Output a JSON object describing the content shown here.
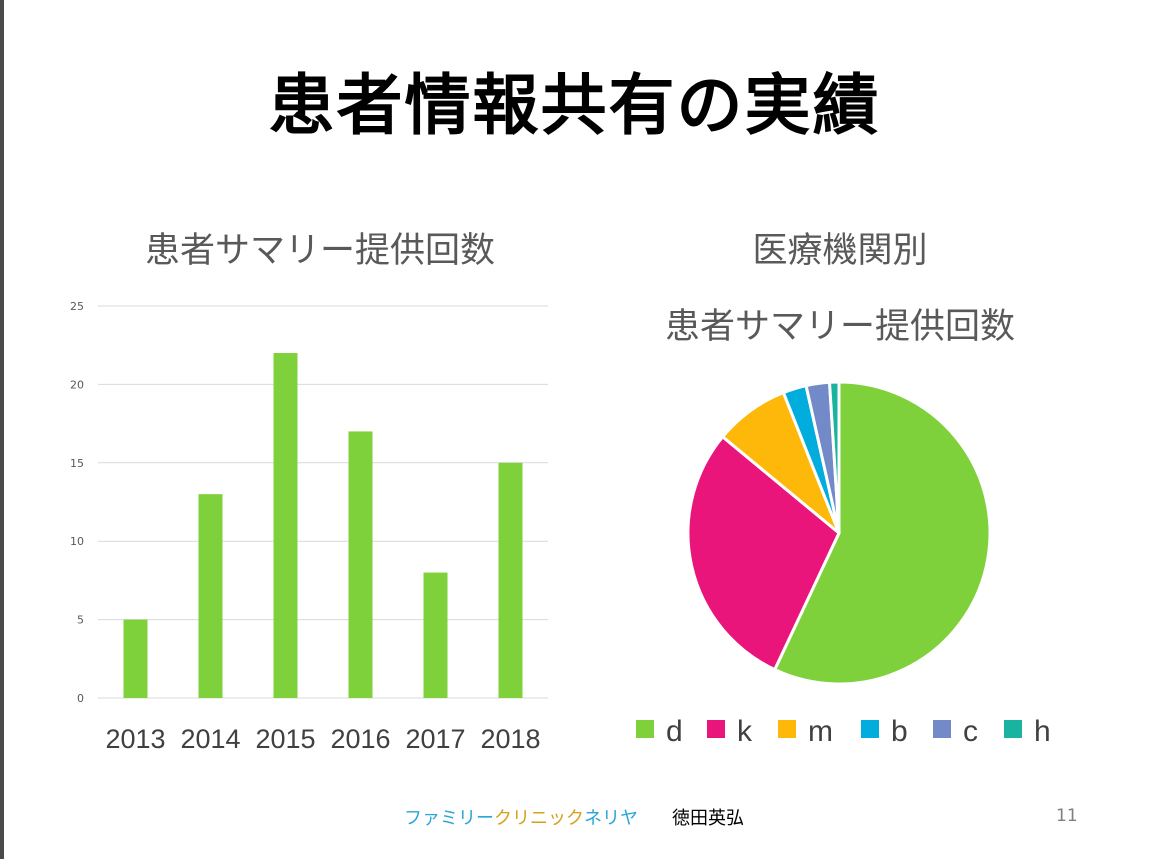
{
  "slide": {
    "title": "患者情報共有の実績",
    "page_number": "11"
  },
  "footer": {
    "brand_parts": [
      {
        "text": "ファミリー",
        "color": "#2aa6d8"
      },
      {
        "text": "クリニック",
        "color": "#d4a21a"
      },
      {
        "text": "ネリヤ",
        "color": "#2aa6d8"
      }
    ],
    "author": "徳田英弘"
  },
  "chart_data": [
    {
      "type": "bar",
      "title": "患者サマリー提供回数",
      "categories": [
        "2013",
        "2014",
        "2015",
        "2016",
        "2017",
        "2018"
      ],
      "values": [
        5,
        13,
        22,
        17,
        8,
        15
      ],
      "ylim": [
        0,
        25
      ],
      "yticks": [
        0,
        5,
        10,
        15,
        20,
        25
      ],
      "grid": true,
      "color": "#7fd13b"
    },
    {
      "type": "pie",
      "title_lines": [
        "医療機関別",
        "患者サマリー提供回数"
      ],
      "labels": [
        "d",
        "k",
        "m",
        "b",
        "c",
        "h"
      ],
      "values": [
        57,
        29,
        8,
        2.5,
        2.5,
        1
      ],
      "colors": [
        "#7fd13b",
        "#ea157a",
        "#feb80a",
        "#00addc",
        "#738ac8",
        "#1ab39f"
      ],
      "legend_position": "bottom"
    }
  ]
}
